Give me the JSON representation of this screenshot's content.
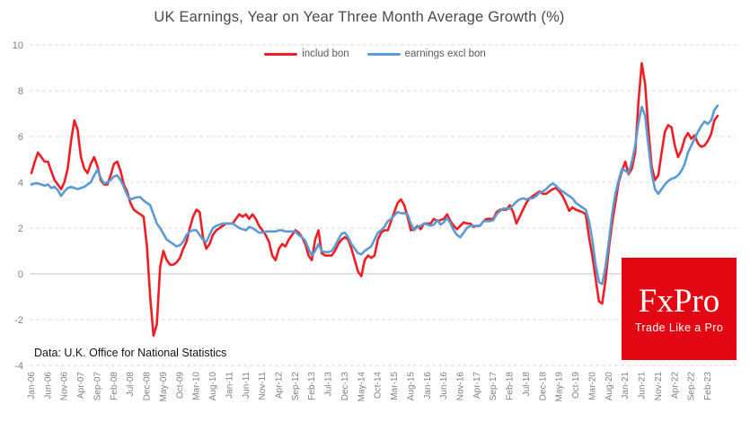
{
  "header": {
    "title": "UK Earnings, Year on Year Three Month Average Growth (%)"
  },
  "legend": {
    "items": [
      {
        "label": "includ bon",
        "color": "#ed1f24"
      },
      {
        "label": "earnings excl bon",
        "color": "#5b9bd5"
      }
    ]
  },
  "source_note": "Data: U.K. Office for National Statistics",
  "logo": {
    "wordmark": "FxPro",
    "tagline": "Trade Like a Pro",
    "background": "#e30613",
    "text_color": "#ffffff"
  },
  "chart_data": {
    "type": "line",
    "title": "UK Earnings, Year on Year Three Month Average Growth (%)",
    "x_start": "Jan-06",
    "x_end": "May-23",
    "frequency": "monthly",
    "xlabel": "",
    "ylabel": "",
    "ylim": [
      -4,
      10
    ],
    "y_ticks": [
      10,
      8,
      6,
      4,
      2,
      0,
      -2,
      -4
    ],
    "grid": "horizontal dashed, solid zero line",
    "legend_position": "top-center",
    "tick_every_n_months": 5,
    "tick_labels": [
      "Jan-06",
      "Jun-06",
      "Nov-06",
      "Apr-07",
      "Sep-07",
      "Feb-08",
      "Jul-08",
      "Dec-08",
      "May-09",
      "Oct-09",
      "Mar-10",
      "Aug-10",
      "Jan-11",
      "Jun-11",
      "Nov-11",
      "Apr-12",
      "Sep-12",
      "Feb-13",
      "Jul-13",
      "Dec-13",
      "May-14",
      "Oct-14",
      "Mar-15",
      "Aug-15",
      "Jan-16",
      "Jun-16",
      "Nov-16",
      "Apr-17",
      "Sep-17",
      "Feb-18",
      "Jul-18",
      "Dec-18",
      "May-19",
      "Oct-19",
      "Mar-20",
      "Aug-20",
      "Jan-21",
      "Jun-21",
      "Nov-21",
      "Apr-22",
      "Sep-22",
      "Feb-23"
    ],
    "series": [
      {
        "name": "includ bon",
        "color": "#ed1f24",
        "values": [
          4.4,
          4.9,
          5.3,
          5.1,
          4.9,
          4.9,
          4.5,
          4.1,
          3.9,
          3.7,
          4.0,
          4.6,
          5.8,
          6.7,
          6.3,
          5.1,
          4.6,
          4.4,
          4.8,
          5.1,
          4.7,
          4.1,
          3.9,
          3.9,
          4.3,
          4.8,
          4.9,
          4.5,
          3.9,
          3.6,
          3.1,
          2.8,
          2.7,
          2.6,
          2.5,
          1.2,
          -1.0,
          -2.7,
          -2.2,
          0.3,
          1.0,
          0.6,
          0.4,
          0.4,
          0.5,
          0.7,
          1.1,
          1.4,
          2.0,
          2.5,
          2.8,
          2.7,
          1.6,
          1.1,
          1.3,
          1.7,
          1.9,
          2.0,
          2.1,
          2.2,
          2.2,
          2.2,
          2.4,
          2.6,
          2.5,
          2.6,
          2.4,
          2.6,
          2.4,
          2.1,
          1.9,
          1.7,
          1.4,
          0.8,
          0.6,
          1.1,
          1.3,
          1.2,
          1.5,
          1.7,
          1.9,
          1.8,
          1.6,
          1.3,
          0.8,
          0.6,
          1.5,
          1.9,
          0.9,
          0.8,
          0.8,
          0.8,
          1.0,
          1.3,
          1.5,
          1.6,
          1.5,
          1.1,
          0.6,
          0.1,
          -0.1,
          0.6,
          0.8,
          0.7,
          0.8,
          1.5,
          1.8,
          1.9,
          1.9,
          2.3,
          2.7,
          3.1,
          3.25,
          3.0,
          2.5,
          1.9,
          1.95,
          2.1,
          1.95,
          2.2,
          2.2,
          2.2,
          2.4,
          2.3,
          2.35,
          2.4,
          2.6,
          2.3,
          2.1,
          1.95,
          2.1,
          2.25,
          2.2,
          2.2,
          2.05,
          2.1,
          2.1,
          2.3,
          2.4,
          2.4,
          2.4,
          2.7,
          2.8,
          2.8,
          2.8,
          3.0,
          2.7,
          2.2,
          2.5,
          2.8,
          3.1,
          3.3,
          3.4,
          3.5,
          3.6,
          3.5,
          3.5,
          3.6,
          3.7,
          3.75,
          3.6,
          3.4,
          3.1,
          2.75,
          2.9,
          2.8,
          2.75,
          2.7,
          2.6,
          1.6,
          0.8,
          -0.2,
          -1.2,
          -1.3,
          -0.3,
          1.1,
          2.2,
          3.1,
          4.0,
          4.5,
          4.9,
          4.35,
          4.6,
          5.3,
          7.5,
          9.2,
          8.3,
          6.3,
          4.7,
          4.1,
          4.3,
          5.3,
          6.2,
          6.5,
          6.4,
          5.6,
          5.1,
          5.4,
          5.9,
          6.15,
          5.9,
          6.05,
          5.7,
          5.55,
          5.6,
          5.8,
          6.1,
          6.7,
          6.9
        ]
      },
      {
        "name": "earnings excl bon",
        "color": "#5b9bd5",
        "values": [
          3.9,
          3.95,
          3.95,
          3.9,
          3.85,
          3.9,
          3.75,
          3.8,
          3.65,
          3.4,
          3.6,
          3.75,
          3.8,
          3.75,
          3.7,
          3.75,
          3.8,
          3.9,
          4.0,
          4.3,
          4.55,
          4.2,
          3.95,
          4.0,
          4.1,
          4.25,
          4.3,
          4.1,
          3.8,
          3.45,
          3.25,
          3.3,
          3.35,
          3.35,
          3.2,
          3.1,
          3.0,
          2.6,
          2.2,
          2.0,
          1.75,
          1.5,
          1.4,
          1.3,
          1.2,
          1.25,
          1.4,
          1.7,
          1.85,
          1.9,
          1.9,
          1.7,
          1.5,
          1.4,
          1.7,
          2.0,
          2.1,
          2.15,
          2.2,
          2.2,
          2.2,
          2.2,
          2.1,
          2.0,
          1.95,
          1.9,
          2.05,
          2.0,
          1.9,
          1.8,
          1.8,
          1.85,
          1.85,
          1.85,
          1.85,
          1.9,
          1.9,
          1.85,
          1.85,
          1.85,
          1.85,
          1.7,
          1.6,
          1.45,
          1.1,
          0.8,
          1.0,
          1.3,
          1.0,
          0.95,
          0.95,
          1.0,
          1.2,
          1.5,
          1.75,
          1.8,
          1.6,
          1.3,
          1.1,
          0.9,
          0.85,
          1.0,
          1.1,
          1.2,
          1.5,
          1.8,
          1.9,
          2.05,
          2.3,
          2.4,
          2.55,
          2.7,
          2.65,
          2.65,
          2.6,
          2.2,
          1.9,
          2.05,
          2.1,
          2.2,
          2.15,
          2.1,
          2.15,
          2.35,
          2.15,
          2.25,
          2.45,
          2.2,
          1.9,
          1.7,
          1.6,
          1.8,
          2.0,
          2.1,
          2.1,
          2.1,
          2.1,
          2.3,
          2.3,
          2.3,
          2.35,
          2.6,
          2.75,
          2.85,
          2.85,
          2.85,
          3.0,
          3.15,
          3.25,
          3.3,
          3.25,
          3.3,
          3.3,
          3.4,
          3.55,
          3.6,
          3.7,
          3.85,
          3.95,
          3.85,
          3.7,
          3.6,
          3.5,
          3.4,
          3.3,
          3.1,
          3.0,
          2.9,
          2.8,
          2.3,
          1.5,
          0.4,
          -0.35,
          -0.45,
          0.3,
          1.4,
          2.6,
          3.5,
          4.1,
          4.6,
          4.5,
          4.4,
          4.9,
          5.6,
          6.6,
          7.3,
          6.9,
          5.6,
          4.4,
          3.7,
          3.5,
          3.7,
          3.9,
          4.05,
          4.15,
          4.2,
          4.3,
          4.5,
          4.8,
          5.3,
          5.6,
          5.9,
          6.2,
          6.45,
          6.65,
          6.55,
          6.7,
          7.15,
          7.35
        ]
      }
    ]
  }
}
